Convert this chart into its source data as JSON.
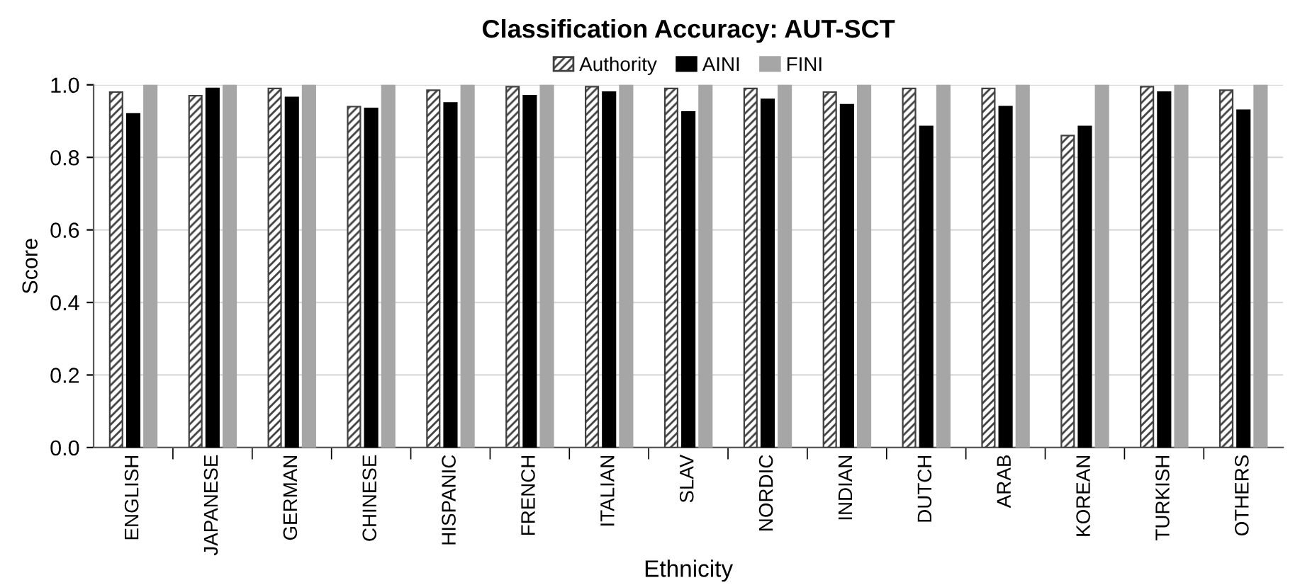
{
  "chart_data": {
    "type": "bar",
    "title": "Classification Accuracy: AUT-SCT",
    "xlabel": "Ethnicity",
    "ylabel": "Score",
    "categories": [
      "ENGLISH",
      "JAPANESE",
      "GERMAN",
      "CHINESE",
      "HISPANIC",
      "FRENCH",
      "ITALIAN",
      "SLAV",
      "NORDIC",
      "INDIAN",
      "DUTCH",
      "ARAB",
      "KOREAN",
      "TURKISH",
      "OTHERS"
    ],
    "series": [
      {
        "name": "Authority",
        "color": "#404040",
        "values": [
          0.98,
          0.97,
          0.99,
          0.94,
          0.985,
          0.995,
          0.995,
          0.99,
          0.99,
          0.98,
          0.99,
          0.99,
          0.86,
          0.995,
          0.985
        ]
      },
      {
        "name": "AINI",
        "color": "#000000",
        "values": [
          0.92,
          0.99,
          0.965,
          0.935,
          0.95,
          0.97,
          0.98,
          0.925,
          0.96,
          0.945,
          0.885,
          0.94,
          0.885,
          0.98,
          0.93
        ]
      },
      {
        "name": "FINI",
        "color": "#a6a6a6",
        "values": [
          1.0,
          1.0,
          1.0,
          1.0,
          1.0,
          1.0,
          1.0,
          1.0,
          1.0,
          1.0,
          1.0,
          1.0,
          1.0,
          1.0,
          1.0
        ]
      }
    ],
    "ylim": [
      0,
      1.0
    ],
    "yticks": [
      {
        "value": 0,
        "label": "0.0"
      },
      {
        "value": 0.2,
        "label": "0.2"
      },
      {
        "value": 0.4,
        "label": "0.4"
      },
      {
        "value": 0.6,
        "label": "0.6"
      },
      {
        "value": 0.8,
        "label": "0.8"
      },
      {
        "value": 1.0,
        "label": "1.0"
      }
    ],
    "grid": "y",
    "legend": "top"
  }
}
